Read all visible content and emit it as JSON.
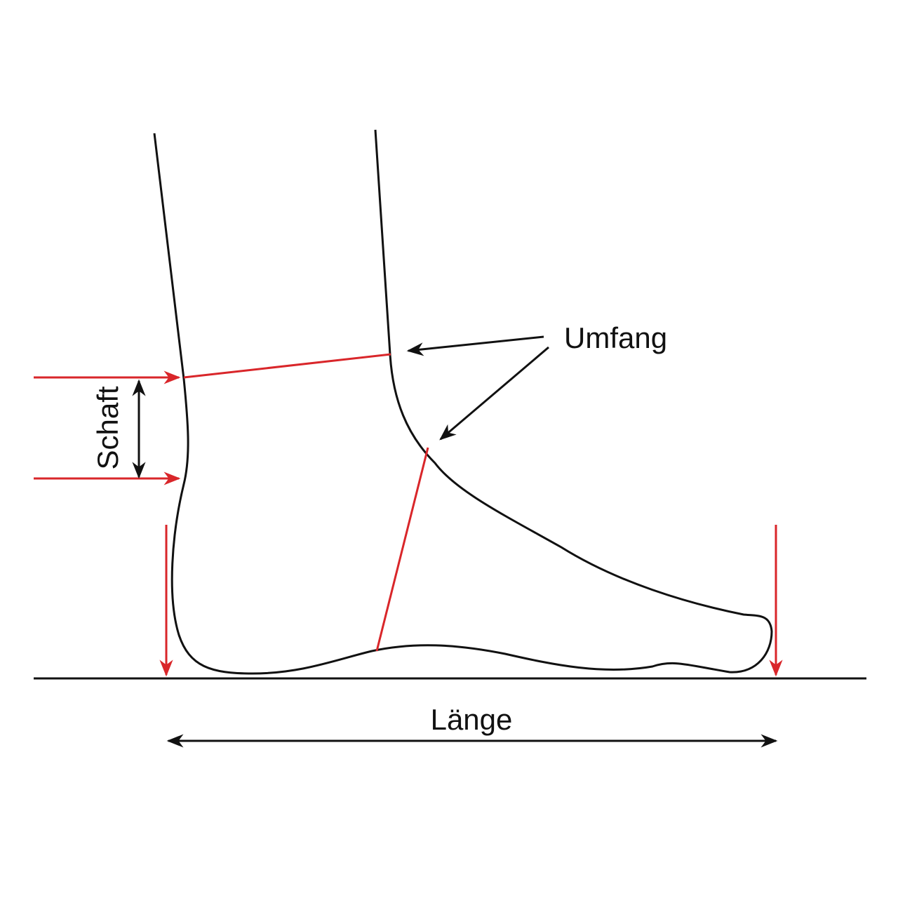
{
  "labels": {
    "circumference": "Umfang",
    "shaft": "Schaft",
    "length": "Länge"
  }
}
